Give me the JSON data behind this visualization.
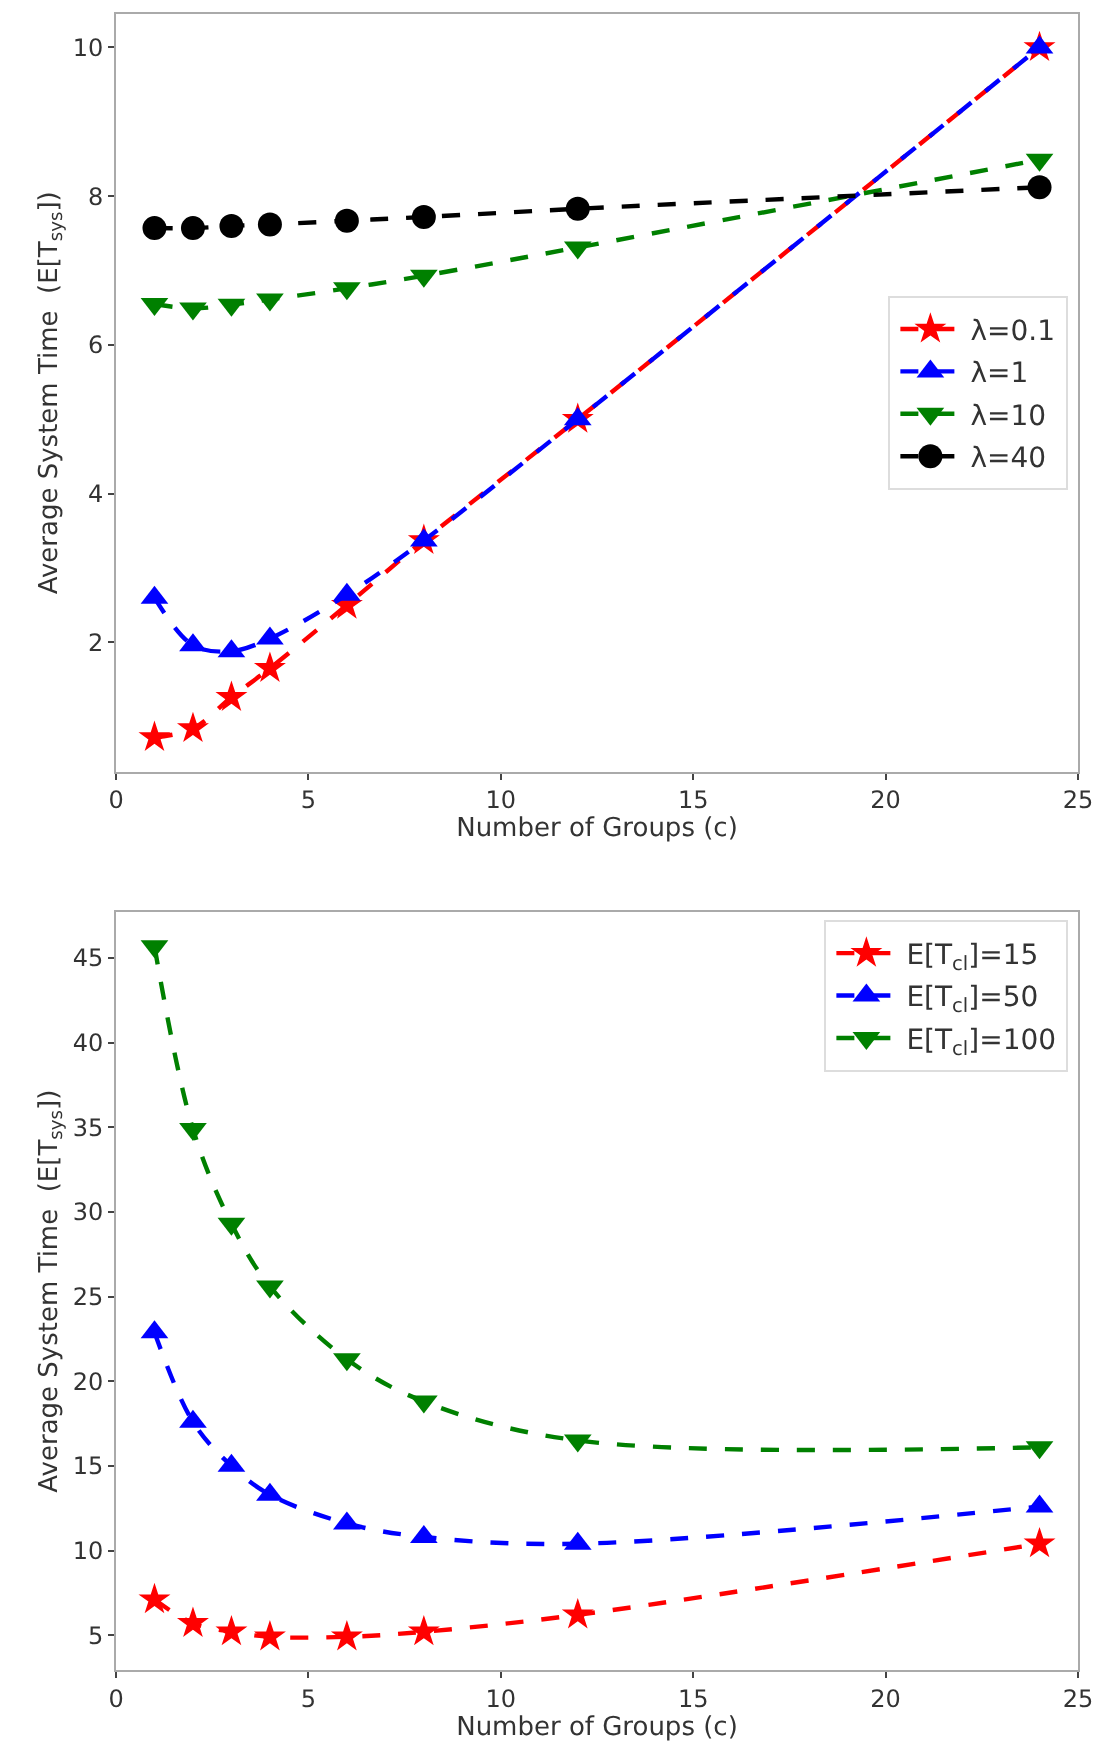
{
  "chart_data": [
    {
      "type": "line",
      "xlabel": "Number of Groups (c)",
      "ylabel": "Average System Time  (E[T$_{sys}$])",
      "x": [
        1,
        2,
        3,
        4,
        6,
        8,
        12,
        24
      ],
      "xlim": [
        0,
        25
      ],
      "xticks": [
        0,
        5,
        10,
        15,
        20,
        25
      ],
      "ylim": [
        0.26,
        10.45
      ],
      "yticks": [
        2,
        4,
        6,
        8,
        10
      ],
      "legend": "right",
      "line_style": "dashed",
      "series": [
        {
          "name": "λ=0.1",
          "color": "#ff0000",
          "marker": "star",
          "values": [
            0.72,
            0.84,
            1.26,
            1.65,
            2.5,
            3.37,
            5.0,
            10.0
          ]
        },
        {
          "name": "λ=1",
          "color": "#0000ff",
          "marker": "triangle",
          "values": [
            2.6,
            1.96,
            1.88,
            2.05,
            2.64,
            3.37,
            5.0,
            10.0
          ]
        },
        {
          "name": "λ=10",
          "color": "#008000",
          "marker": "triangle-down",
          "values": [
            6.55,
            6.49,
            6.54,
            6.61,
            6.76,
            6.93,
            7.31,
            8.49
          ]
        },
        {
          "name": "λ=40",
          "color": "#000000",
          "marker": "circle",
          "values": [
            7.57,
            7.57,
            7.6,
            7.62,
            7.67,
            7.72,
            7.83,
            8.12
          ]
        }
      ]
    },
    {
      "type": "line",
      "xlabel": "Number of Groups (c)",
      "ylabel": "Average System Time  (E[T$_{sys}$])",
      "x": [
        1,
        2,
        3,
        4,
        6,
        8,
        12,
        24
      ],
      "xlim": [
        0,
        25
      ],
      "xticks": [
        0,
        5,
        10,
        15,
        20,
        25
      ],
      "ylim": [
        2.94,
        47.7
      ],
      "yticks": [
        5,
        10,
        15,
        20,
        25,
        30,
        35,
        40,
        45
      ],
      "legend": "top right",
      "line_style": "dashed",
      "series": [
        {
          "name": "E[T$_{cl}$]=15",
          "color": "#ff0000",
          "marker": "star",
          "values": [
            7.1,
            5.7,
            5.2,
            4.9,
            4.9,
            5.2,
            6.2,
            10.4
          ]
        },
        {
          "name": "E[T$_{cl}$]=50",
          "color": "#0000ff",
          "marker": "triangle",
          "values": [
            22.9,
            17.6,
            15.0,
            13.3,
            11.6,
            10.8,
            10.4,
            12.6
          ]
        },
        {
          "name": "E[T$_{cl}$]=100",
          "color": "#008000",
          "marker": "triangle-down",
          "values": [
            45.7,
            34.9,
            29.3,
            25.6,
            21.3,
            18.8,
            16.5,
            16.1
          ]
        }
      ]
    }
  ]
}
